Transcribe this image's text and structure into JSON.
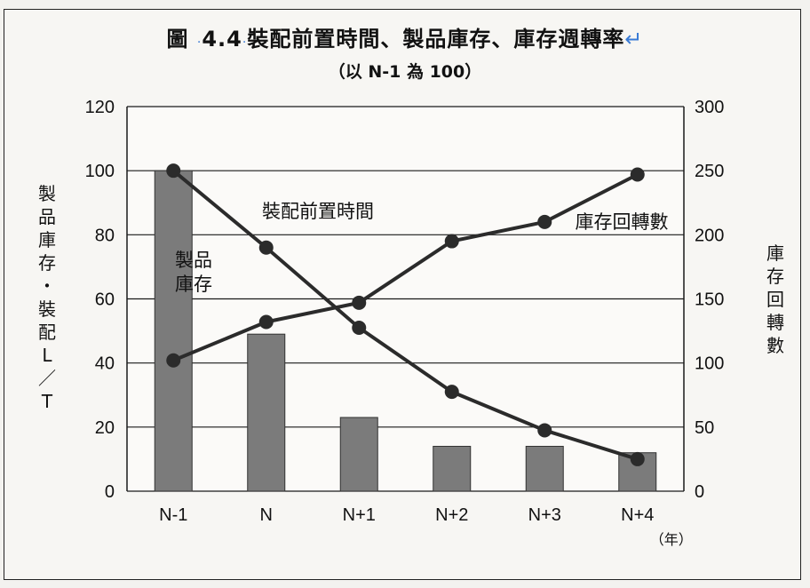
{
  "title_parts": {
    "prefix": "圖",
    "number": "4.4",
    "main": "裝配前置時間、製品庫存、庫存週轉率",
    "return_mark": "↵"
  },
  "subtitle": "（以 N-1 為 100）",
  "chart_data": {
    "type": "bar+line",
    "categories": [
      "N-1",
      "N",
      "N+1",
      "N+2",
      "N+3",
      "N+4"
    ],
    "x_unit": "（年）",
    "y_left": {
      "label": "製品庫存・裝配L／T",
      "ticks": [
        0,
        20,
        40,
        60,
        80,
        100,
        120
      ],
      "range": [
        0,
        120
      ]
    },
    "y_right": {
      "label": "庫存回轉數",
      "ticks": [
        0,
        50,
        100,
        150,
        200,
        250,
        300
      ],
      "range": [
        0,
        300
      ]
    },
    "series": [
      {
        "name": "製品庫存",
        "kind": "bar",
        "axis": "left",
        "values": [
          100,
          49,
          23,
          14,
          14,
          12
        ]
      },
      {
        "name": "裝配前置時間",
        "kind": "line",
        "axis": "left",
        "values": [
          100,
          76,
          51,
          31,
          19,
          10
        ]
      },
      {
        "name": "庫存回轉數",
        "kind": "line",
        "axis": "right",
        "values": [
          102,
          132,
          147,
          195,
          210,
          247
        ]
      }
    ],
    "grid": "horizontal",
    "legend": "inline labels"
  }
}
